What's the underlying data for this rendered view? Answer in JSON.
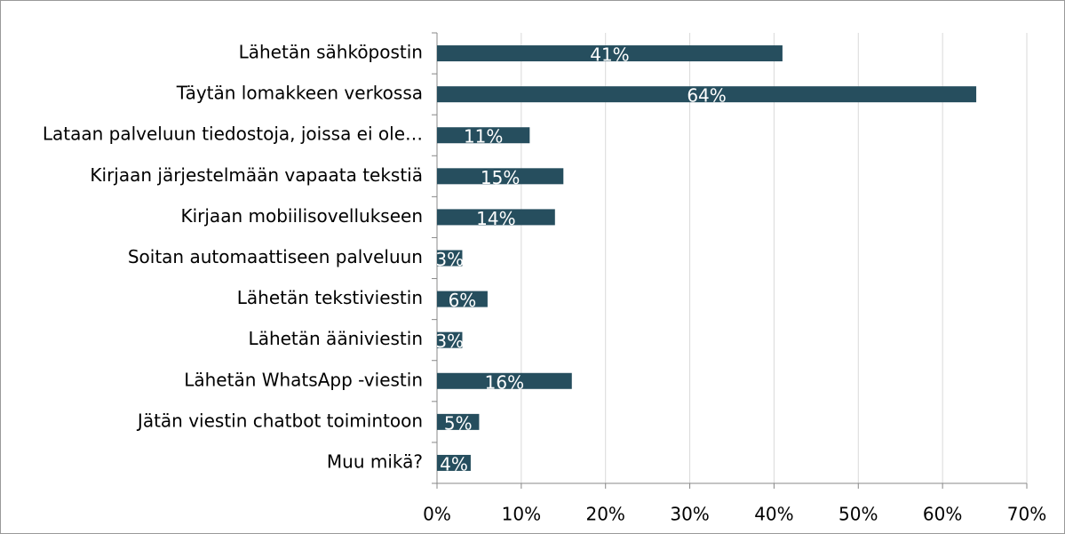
{
  "chart_data": {
    "type": "bar",
    "orientation": "horizontal",
    "categories": [
      "Lähetän sähköpostin",
      "Täytän lomakkeen verkossa",
      "Lataan palveluun tiedostoja, joissa ei ole…",
      "Kirjaan järjestelmään vapaata tekstiä",
      "Kirjaan mobiilisovellukseen",
      "Soitan automaattiseen palveluun",
      "Lähetän tekstiviestin",
      "Lähetän ääniviestin",
      "Lähetän WhatsApp -viestin",
      "Jätän viestin chatbot toimintoon",
      "Muu mikä?"
    ],
    "values": [
      41,
      64,
      11,
      15,
      14,
      3,
      6,
      3,
      16,
      5,
      4
    ],
    "value_labels": [
      "41%",
      "64%",
      "11%",
      "15%",
      "14%",
      "3%",
      "6%",
      "3%",
      "16%",
      "5%",
      "4%"
    ],
    "color": "#264e5e",
    "xlim": [
      0,
      70
    ],
    "xticks": [
      {
        "value": 0,
        "label": "0%"
      },
      {
        "value": 10,
        "label": "10%"
      },
      {
        "value": 20,
        "label": "20%"
      },
      {
        "value": 30,
        "label": "30%"
      },
      {
        "value": 40,
        "label": "40%"
      },
      {
        "value": 50,
        "label": "50%"
      },
      {
        "value": 60,
        "label": "60%"
      },
      {
        "value": 70,
        "label": "70%"
      }
    ],
    "grid": true
  }
}
